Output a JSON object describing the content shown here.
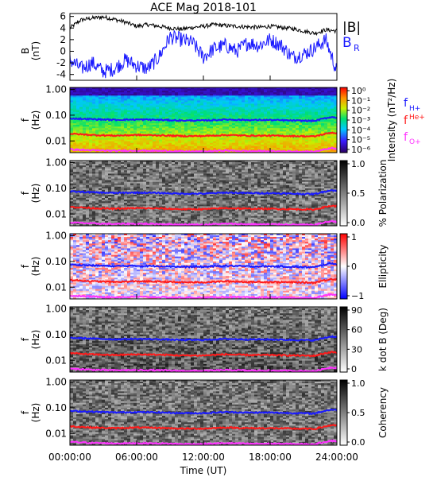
{
  "title": "ACE Mag 2018-101",
  "x_axis": {
    "label": "Time (UT)",
    "ticks": [
      "00:00:00",
      "06:00:00",
      "12:00:00",
      "18:00:00",
      "24:00:00"
    ],
    "range_hours": [
      0,
      24
    ]
  },
  "colors": {
    "B_total": "#000000",
    "B_R": "#1a1aff",
    "f_H": "#1a1aff",
    "f_He": "#ff1a1a",
    "f_O": "#ff33ff"
  },
  "panels": [
    {
      "id": "mag",
      "ylabel_top": "B",
      "ylabel_bottom": "(nT)",
      "yticks": [
        "6",
        "4",
        "2",
        "0",
        "-2",
        "-4"
      ],
      "ylim": [
        -5,
        6.5
      ],
      "legend": [
        "|B|",
        "B",
        "R"
      ]
    },
    {
      "id": "intensity",
      "ylabel_top": "f",
      "ylabel_bottom": "(Hz)",
      "yticks": [
        "1.00",
        "0.10",
        "0.01"
      ],
      "cbar_title": "Intensity (nT²/Hz)",
      "cbar_ticks": [
        "10⁰",
        "10⁻¹",
        "10⁻²",
        "10⁻³",
        "10⁻⁴",
        "10⁻⁵",
        "10⁻⁶"
      ],
      "ion_labels": [
        "f",
        "H+",
        "f",
        "He+",
        "f",
        "O+"
      ]
    },
    {
      "id": "polarization",
      "ylabel_top": "f",
      "ylabel_bottom": "(Hz)",
      "yticks": [
        "1.00",
        "0.10",
        "0.01"
      ],
      "cbar_title": "% Polarization",
      "cbar_ticks": [
        "1.0",
        "0.5",
        "0.0"
      ]
    },
    {
      "id": "ellipticity",
      "ylabel_top": "f",
      "ylabel_bottom": "(Hz)",
      "yticks": [
        "1.00",
        "0.10",
        "0.01"
      ],
      "cbar_title": "Ellipticity",
      "cbar_ticks": [
        "1",
        "0",
        "−1"
      ]
    },
    {
      "id": "kdotb",
      "ylabel_top": "f",
      "ylabel_bottom": "(Hz)",
      "yticks": [
        "1.00",
        "0.10",
        "0.01"
      ],
      "cbar_title": "k dot B (Deg)",
      "cbar_ticks": [
        "90",
        "60",
        "30",
        "0"
      ]
    },
    {
      "id": "coherency",
      "ylabel_top": "f",
      "ylabel_bottom": "(Hz)",
      "yticks": [
        "1.00",
        "0.10",
        "0.01"
      ],
      "cbar_title": "Coherency",
      "cbar_ticks": [
        "1.0",
        "0.5",
        "0.0"
      ]
    }
  ],
  "chart_data": [
    {
      "type": "line",
      "title": "ACE Mag 2018-101",
      "xlabel": "Time (UT)",
      "ylabel": "B (nT)",
      "ylim": [
        -5,
        6.5
      ],
      "series": [
        {
          "name": "|B|",
          "x": [
            0,
            1,
            2,
            3,
            4,
            5,
            6,
            7,
            8,
            9,
            10,
            11,
            12,
            13,
            14,
            15,
            16,
            17,
            18,
            19,
            20,
            21,
            22,
            23,
            24
          ],
          "y": [
            4.0,
            5.4,
            5.7,
            5.9,
            5.5,
            5.0,
            4.3,
            4.6,
            4.3,
            4.0,
            3.8,
            4.1,
            4.3,
            4.6,
            4.4,
            4.3,
            4.2,
            4.1,
            4.3,
            4.1,
            3.9,
            3.5,
            3.1,
            3.7,
            3.5
          ]
        },
        {
          "name": "B_R",
          "x": [
            0,
            1,
            2,
            3,
            4,
            5,
            6,
            7,
            8,
            9,
            10,
            11,
            12,
            13,
            14,
            15,
            16,
            17,
            18,
            19,
            20,
            21,
            22,
            23,
            24
          ],
          "y": [
            -1.5,
            -3.0,
            -2.0,
            -3.5,
            -3.0,
            -1.5,
            -2.5,
            -3.0,
            -1.0,
            2.5,
            2.0,
            1.5,
            -1.0,
            0.5,
            1.0,
            0.0,
            1.5,
            1.0,
            2.0,
            1.0,
            -1.0,
            -0.5,
            0.5,
            2.0,
            -3.5
          ]
        }
      ]
    },
    {
      "type": "heatmap",
      "title": "Intensity",
      "ylabel": "f (Hz)",
      "colorbar_range": [
        1e-06,
        1
      ],
      "series": [
        {
          "name": "f_H+",
          "x": [
            0,
            2,
            4,
            6,
            8,
            10,
            12,
            14,
            16,
            18,
            20,
            22,
            23.5,
            24
          ],
          "y": [
            0.075,
            0.07,
            0.066,
            0.068,
            0.066,
            0.062,
            0.062,
            0.068,
            0.065,
            0.065,
            0.062,
            0.06,
            0.085,
            0.08
          ]
        },
        {
          "name": "f_He+",
          "x": [
            0,
            2,
            4,
            6,
            8,
            10,
            12,
            14,
            16,
            18,
            20,
            22,
            23.5,
            24
          ],
          "y": [
            0.019,
            0.017,
            0.016,
            0.017,
            0.0165,
            0.0155,
            0.0155,
            0.017,
            0.016,
            0.016,
            0.0155,
            0.015,
            0.021,
            0.02
          ]
        },
        {
          "name": "f_O+",
          "x": [
            0,
            2,
            4,
            6,
            8,
            10,
            12,
            14,
            16,
            18,
            20,
            22,
            23.5,
            24
          ],
          "y": [
            0.0047,
            0.0043,
            0.0041,
            0.0042,
            0.0041,
            0.0039,
            0.0039,
            0.0042,
            0.004,
            0.004,
            0.0039,
            0.0038,
            0.0053,
            0.005
          ]
        }
      ]
    }
  ]
}
